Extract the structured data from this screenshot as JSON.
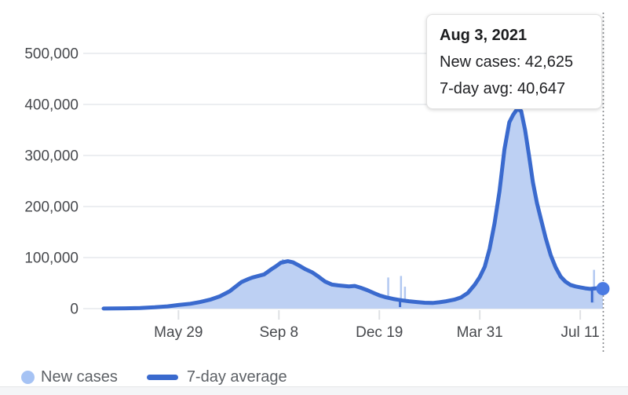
{
  "tooltip": {
    "date": "Aug 3, 2021",
    "lines": [
      "New cases: 42,625",
      "7-day avg: 40,647"
    ]
  },
  "legend": {
    "new_cases_label": "New cases",
    "avg_label": "7-day average"
  },
  "colors": {
    "line": "#3a6ace",
    "fill": "#bdd0f3",
    "spike": "#b2c8f1",
    "legend_dot": "#a6c3f4",
    "marker": "#4b7be2",
    "grid": "#eceef1",
    "tick": "#dfe1e4",
    "dotted": "#85888c",
    "axis_text": "#47494d"
  },
  "chart_data": {
    "type": "area",
    "legend_position": "bottom",
    "grid": true,
    "x_axis": {
      "start": "2020-03-14",
      "end": "2021-08-03",
      "ticks": [
        {
          "date": "2020-05-29",
          "label": "May 29"
        },
        {
          "date": "2020-09-08",
          "label": "Sep 8"
        },
        {
          "date": "2020-12-19",
          "label": "Dec 19"
        },
        {
          "date": "2021-03-31",
          "label": "Mar 31"
        },
        {
          "date": "2021-07-11",
          "label": "Jul 11"
        }
      ]
    },
    "y_axis": {
      "min": 0,
      "max": 500000,
      "ticks": [
        {
          "value": 0,
          "label": "0"
        },
        {
          "value": 100000,
          "label": "100,000"
        },
        {
          "value": 200000,
          "label": "200,000"
        },
        {
          "value": 300000,
          "label": "300,000"
        },
        {
          "value": 400000,
          "label": "400,000"
        },
        {
          "value": 500000,
          "label": "500,000"
        }
      ]
    },
    "series": [
      {
        "name": "7-day average",
        "points": [
          [
            "2020-03-14",
            100
          ],
          [
            "2020-03-25",
            300
          ],
          [
            "2020-04-05",
            600
          ],
          [
            "2020-04-20",
            1300
          ],
          [
            "2020-05-05",
            2600
          ],
          [
            "2020-05-18",
            4500
          ],
          [
            "2020-05-29",
            7000
          ],
          [
            "2020-06-10",
            9500
          ],
          [
            "2020-06-20",
            13000
          ],
          [
            "2020-07-01",
            18000
          ],
          [
            "2020-07-10",
            24000
          ],
          [
            "2020-07-20",
            34000
          ],
          [
            "2020-08-01",
            52000
          ],
          [
            "2020-08-08",
            58000
          ],
          [
            "2020-08-12",
            61000
          ],
          [
            "2020-08-18",
            64000
          ],
          [
            "2020-08-24",
            67000
          ],
          [
            "2020-09-01",
            78000
          ],
          [
            "2020-09-05",
            83000
          ],
          [
            "2020-09-10",
            90000
          ],
          [
            "2020-09-17",
            93000
          ],
          [
            "2020-09-22",
            91000
          ],
          [
            "2020-09-28",
            85000
          ],
          [
            "2020-10-05",
            77000
          ],
          [
            "2020-10-12",
            71000
          ],
          [
            "2020-10-18",
            63000
          ],
          [
            "2020-10-25",
            53000
          ],
          [
            "2020-11-01",
            47000
          ],
          [
            "2020-11-07",
            45500
          ],
          [
            "2020-11-13",
            44500
          ],
          [
            "2020-11-18",
            43500
          ],
          [
            "2020-11-24",
            44500
          ],
          [
            "2020-11-30",
            41000
          ],
          [
            "2020-12-07",
            36000
          ],
          [
            "2020-12-14",
            30000
          ],
          [
            "2020-12-19",
            26000
          ],
          [
            "2020-12-26",
            22000
          ],
          [
            "2021-01-02",
            19000
          ],
          [
            "2021-01-10",
            16500
          ],
          [
            "2021-01-18",
            14500
          ],
          [
            "2021-01-26",
            13000
          ],
          [
            "2021-02-03",
            11500
          ],
          [
            "2021-02-11",
            11100
          ],
          [
            "2021-02-18",
            12500
          ],
          [
            "2021-02-25",
            14500
          ],
          [
            "2021-03-05",
            17500
          ],
          [
            "2021-03-12",
            22000
          ],
          [
            "2021-03-19",
            31000
          ],
          [
            "2021-03-26",
            47000
          ],
          [
            "2021-03-31",
            62000
          ],
          [
            "2021-04-05",
            82000
          ],
          [
            "2021-04-10",
            117000
          ],
          [
            "2021-04-15",
            167000
          ],
          [
            "2021-04-20",
            230000
          ],
          [
            "2021-04-25",
            312000
          ],
          [
            "2021-04-30",
            365000
          ],
          [
            "2021-05-04",
            380000
          ],
          [
            "2021-05-08",
            391000
          ],
          [
            "2021-05-12",
            387000
          ],
          [
            "2021-05-16",
            350000
          ],
          [
            "2021-05-20",
            300000
          ],
          [
            "2021-05-24",
            247000
          ],
          [
            "2021-05-28",
            207000
          ],
          [
            "2021-06-01",
            176000
          ],
          [
            "2021-06-06",
            138000
          ],
          [
            "2021-06-11",
            105000
          ],
          [
            "2021-06-16",
            81000
          ],
          [
            "2021-06-21",
            63000
          ],
          [
            "2021-06-26",
            53000
          ],
          [
            "2021-07-01",
            46500
          ],
          [
            "2021-07-06",
            43500
          ],
          [
            "2021-07-11",
            41700
          ],
          [
            "2021-07-16",
            39800
          ],
          [
            "2021-07-21",
            38600
          ],
          [
            "2021-07-26",
            39500
          ],
          [
            "2021-07-30",
            40200
          ],
          [
            "2021-08-03",
            40647
          ]
        ]
      }
    ],
    "raw_spikes": [
      [
        "2020-08-28",
        76000,
        67000
      ],
      [
        "2020-09-12",
        97000,
        86000
      ],
      [
        "2020-12-28",
        61000,
        24000
      ],
      [
        "2021-01-10",
        64000,
        16000
      ],
      [
        "2021-01-14",
        43000,
        14000
      ],
      [
        "2021-07-25",
        76000,
        11000
      ]
    ],
    "line_dips": [
      [
        "2021-01-09",
        20000,
        3000
      ],
      [
        "2021-07-23",
        39000,
        12000
      ]
    ],
    "highlight": {
      "date": "2021-08-03",
      "new_cases": 42625,
      "avg": 40647
    }
  }
}
